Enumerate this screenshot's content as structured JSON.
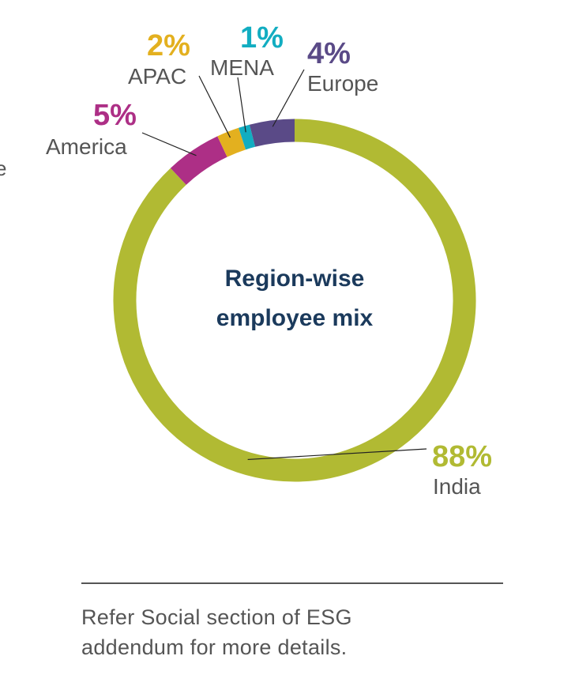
{
  "edge_text": "e",
  "chart_data": {
    "type": "pie",
    "variant": "donut",
    "title_lines": [
      "Region-wise",
      "employee mix"
    ],
    "segments": [
      {
        "name": "India",
        "label": "88%",
        "value": 88,
        "color": "#b1ba33"
      },
      {
        "name": "America",
        "label": "5%",
        "value": 5,
        "color": "#ad2f86"
      },
      {
        "name": "APAC",
        "label": "2%",
        "value": 2,
        "color": "#e3b01f"
      },
      {
        "name": "MENA",
        "label": "1%",
        "value": 1,
        "color": "#12adc1"
      },
      {
        "name": "Europe",
        "label": "4%",
        "value": 4,
        "color": "#5a4a87"
      }
    ]
  },
  "footnote": {
    "line1": "Refer Social section of ESG",
    "line2": "addendum for more details."
  }
}
